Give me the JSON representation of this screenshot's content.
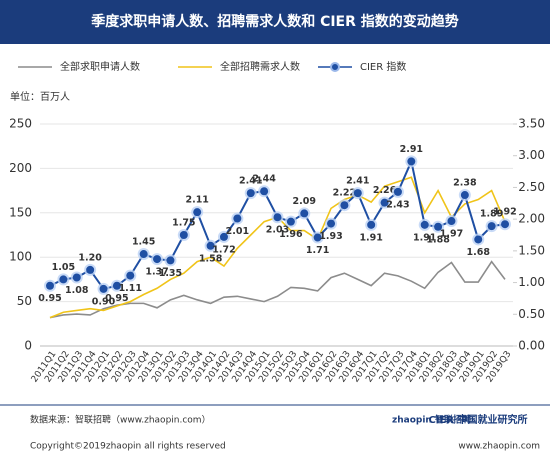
{
  "chart_data": {
    "type": "line",
    "title": "季度求职申请人数、招聘需求人数和 CIER 指数的变动趋势",
    "unit_label": "单位：百万人",
    "source": "数据来源：智联招聘（www.zhaopin.com）",
    "copyright": "Copyright©2019zhaopin all rights reserved",
    "website": "www.zhaopin.com",
    "logo_left": "zhaopin 智联招聘",
    "logo_right": "CIER 中国就业研究所",
    "categories": [
      "2011Q1",
      "2011Q2",
      "2011Q3",
      "2011Q4",
      "2012Q1",
      "2012Q2",
      "2012Q3",
      "2012Q4",
      "2013Q1",
      "2013Q2",
      "2013Q3",
      "2013Q4",
      "2014Q1",
      "2014Q2",
      "2014Q3",
      "2014Q4",
      "2015Q1",
      "2015Q2",
      "2015Q3",
      "2015Q4",
      "2016Q1",
      "2016Q2",
      "2016Q3",
      "2016Q4",
      "2017Q1",
      "2017Q2",
      "2017Q3",
      "2017Q4",
      "2018Q1",
      "2018Q2",
      "2018Q3",
      "2018Q4",
      "2019Q1",
      "2019Q2",
      "2019Q3"
    ],
    "series": [
      {
        "name": "全部求职申请人数",
        "color": "#8c8c8c",
        "values": [
          32,
          35,
          36,
          35,
          42,
          46,
          48,
          48,
          43,
          52,
          57,
          52,
          48,
          55,
          56,
          53,
          50,
          56,
          66,
          65,
          62,
          77,
          82,
          75,
          68,
          82,
          79,
          73,
          65,
          83,
          94,
          72,
          72,
          95,
          75
        ]
      },
      {
        "name": "全部招聘需求人数",
        "color": "#f0c419",
        "values": [
          32,
          38,
          40,
          42,
          40,
          45,
          50,
          58,
          65,
          75,
          82,
          95,
          100,
          90,
          110,
          125,
          140,
          145,
          130,
          130,
          120,
          155,
          165,
          170,
          162,
          180,
          185,
          190,
          150,
          175,
          145,
          160,
          165,
          175,
          140
        ]
      },
      {
        "name": "CIER 指数",
        "color": "#1f4fa3",
        "axis": "y2",
        "marker": true,
        "values": [
          0.95,
          1.05,
          1.08,
          1.2,
          0.9,
          0.95,
          1.11,
          1.45,
          1.37,
          1.35,
          1.75,
          2.11,
          1.58,
          1.72,
          2.01,
          2.41,
          2.44,
          2.03,
          1.96,
          2.09,
          1.71,
          1.93,
          2.22,
          2.41,
          1.91,
          2.26,
          2.43,
          2.91,
          1.91,
          1.88,
          1.97,
          2.38,
          1.68,
          1.89,
          1.92
        ],
        "value_labels": [
          "0.95",
          "1.05",
          "1.08",
          "1.20",
          "0.90",
          "0.95",
          "1.11",
          "1.45",
          "1.37",
          "1.35",
          "1.75",
          "2.11",
          "1.58",
          "1.72",
          "2.01",
          "2.41",
          "2.44",
          "2.03",
          "1.96",
          "2.09",
          "1.71",
          "1.93",
          "2.22",
          "2.41",
          "1.91",
          "2.26",
          "2.43",
          "2.91",
          "1.91",
          "1.88",
          "1.97",
          "2.38",
          "1.68",
          "1.89",
          "1.92"
        ]
      }
    ],
    "ylim": [
      0,
      250
    ],
    "yticks": [
      0,
      50,
      100,
      150,
      200,
      250
    ],
    "y2lim": [
      0,
      3.5
    ],
    "y2ticks": [
      {
        "value": 0,
        "label": "0.00"
      },
      {
        "value": 0.5,
        "label": "0.50"
      },
      {
        "value": 1,
        "label": "1.00"
      },
      {
        "value": 1.5,
        "label": "1.50"
      },
      {
        "value": 2,
        "label": "2.00"
      },
      {
        "value": 2.5,
        "label": "2.50"
      },
      {
        "value": 3,
        "label": "3.00"
      },
      {
        "value": 3.5,
        "label": "3.50"
      }
    ],
    "grid": true
  }
}
